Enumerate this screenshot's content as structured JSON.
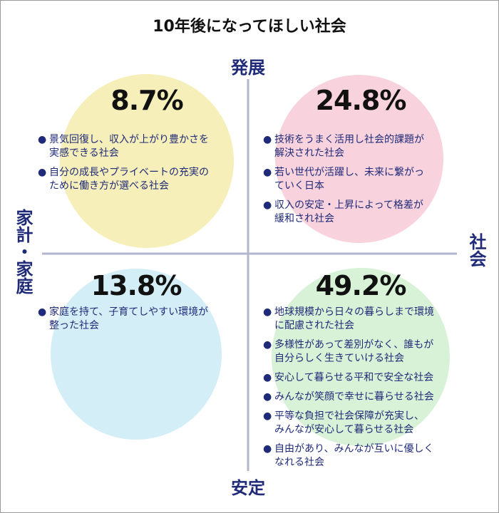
{
  "title": "10年後になってほしい社会",
  "axes": {
    "top": "発展",
    "bottom": "安定",
    "left": "家計・家庭",
    "right": "社会"
  },
  "quadrants": [
    {
      "percent": "8.7%",
      "items": [
        [
          "景気回復し、収入が上がり豊かさを",
          "実感できる社会"
        ],
        [
          "自分の成長やプライベートの充実の",
          "ために働き方が選べる社会"
        ]
      ]
    },
    {
      "percent": "24.8%",
      "items": [
        [
          "技術をうまく活用し社会的課題が",
          "解決された社会"
        ],
        [
          "若い世代が活躍し、未来に繋がっ",
          "ていく日本"
        ],
        [
          "収入の安定・上昇によって格差が",
          "緩和され社会"
        ]
      ]
    },
    {
      "percent": "13.8%",
      "items": [
        [
          "家庭を持て、子育てしやすい環境が",
          "整った社会"
        ]
      ]
    },
    {
      "percent": "49.2%",
      "items": [
        [
          "地球規模から日々の暮らしまで環境",
          "に配慮された社会"
        ],
        [
          "多様性があって差別がなく、誰もが",
          "自分らしく生きていける社会"
        ],
        [
          "安心して暮らせる平和で安全な社会"
        ],
        [
          "みんなが笑顔で幸せに暮らせる社会"
        ],
        [
          "平等な負担で社会保障が充実し、",
          "みんなが安心して暮らせる社会"
        ],
        [
          "自由があり、みんなが互いに優しく",
          "なれる社会"
        ]
      ]
    }
  ]
}
